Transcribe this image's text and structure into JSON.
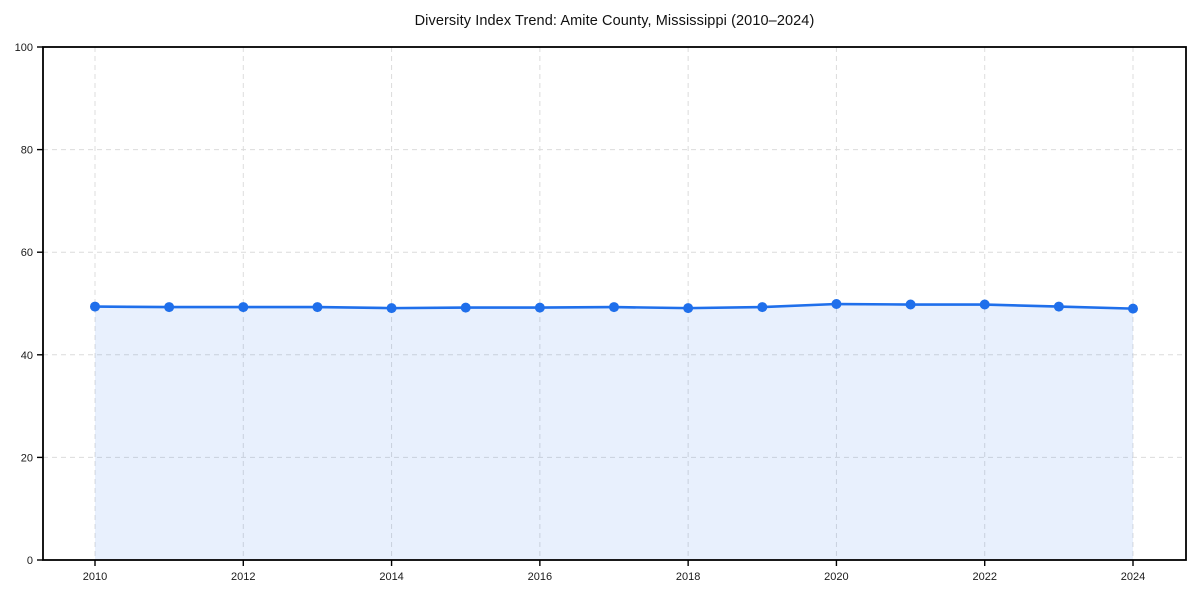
{
  "chart_data": {
    "type": "line",
    "title": "Diversity Index Trend: Amite County, Mississippi (2010–2024)",
    "x": [
      2010,
      2011,
      2012,
      2013,
      2014,
      2015,
      2016,
      2017,
      2018,
      2019,
      2020,
      2021,
      2022,
      2023,
      2024
    ],
    "series": [
      {
        "name": "Diversity Index",
        "values": [
          49.4,
          49.3,
          49.3,
          49.3,
          49.1,
          49.2,
          49.2,
          49.3,
          49.1,
          49.3,
          49.9,
          49.8,
          49.8,
          49.4,
          49.0
        ]
      }
    ],
    "ylim": [
      0,
      100
    ],
    "yticks": [
      0,
      20,
      40,
      60,
      80,
      100
    ],
    "xticks": [
      2010,
      2012,
      2014,
      2016,
      2018,
      2020,
      2022,
      2024
    ],
    "grid": "dashed-on",
    "legend_position": "none",
    "marker": "circle",
    "area_under_line": true,
    "colors": {
      "line": "#1f6feb",
      "marker": "#1f6feb",
      "area_fill": "#1f6feb",
      "area_opacity": 0.1,
      "grid": "#dcdcdc",
      "spine": "#000000",
      "tick_text": "#1a1a1a",
      "background": "#ffffff"
    }
  }
}
